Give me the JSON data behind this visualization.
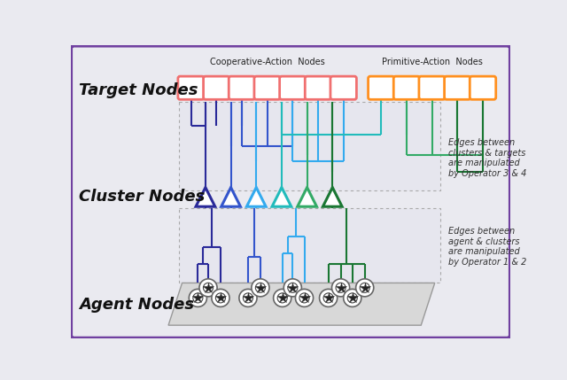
{
  "bg_color": "#eaeaf0",
  "border_color": "#7040a0",
  "title_target": "Target Nodes",
  "title_cluster": "Cluster Nodes",
  "title_agent": "Agent Nodes",
  "coop_label": "Cooperative-Action  Nodes",
  "prim_label": "Primitive-Action  Nodes",
  "edge_label_top": "Edges between\nclusters & targets\nare manipulated\nby Operator 3 & 4",
  "edge_label_bot": "Edges between\nagent & clusters\nare manipulated\nby Operator 1 & 2",
  "coop_color": "#f07070",
  "prim_color": "#ff9020",
  "cluster_colors": [
    "#2a2a99",
    "#3355cc",
    "#33aaee",
    "#22bbbb",
    "#33aa66",
    "#1a7733"
  ],
  "n_coop": 7,
  "n_prim": 5
}
